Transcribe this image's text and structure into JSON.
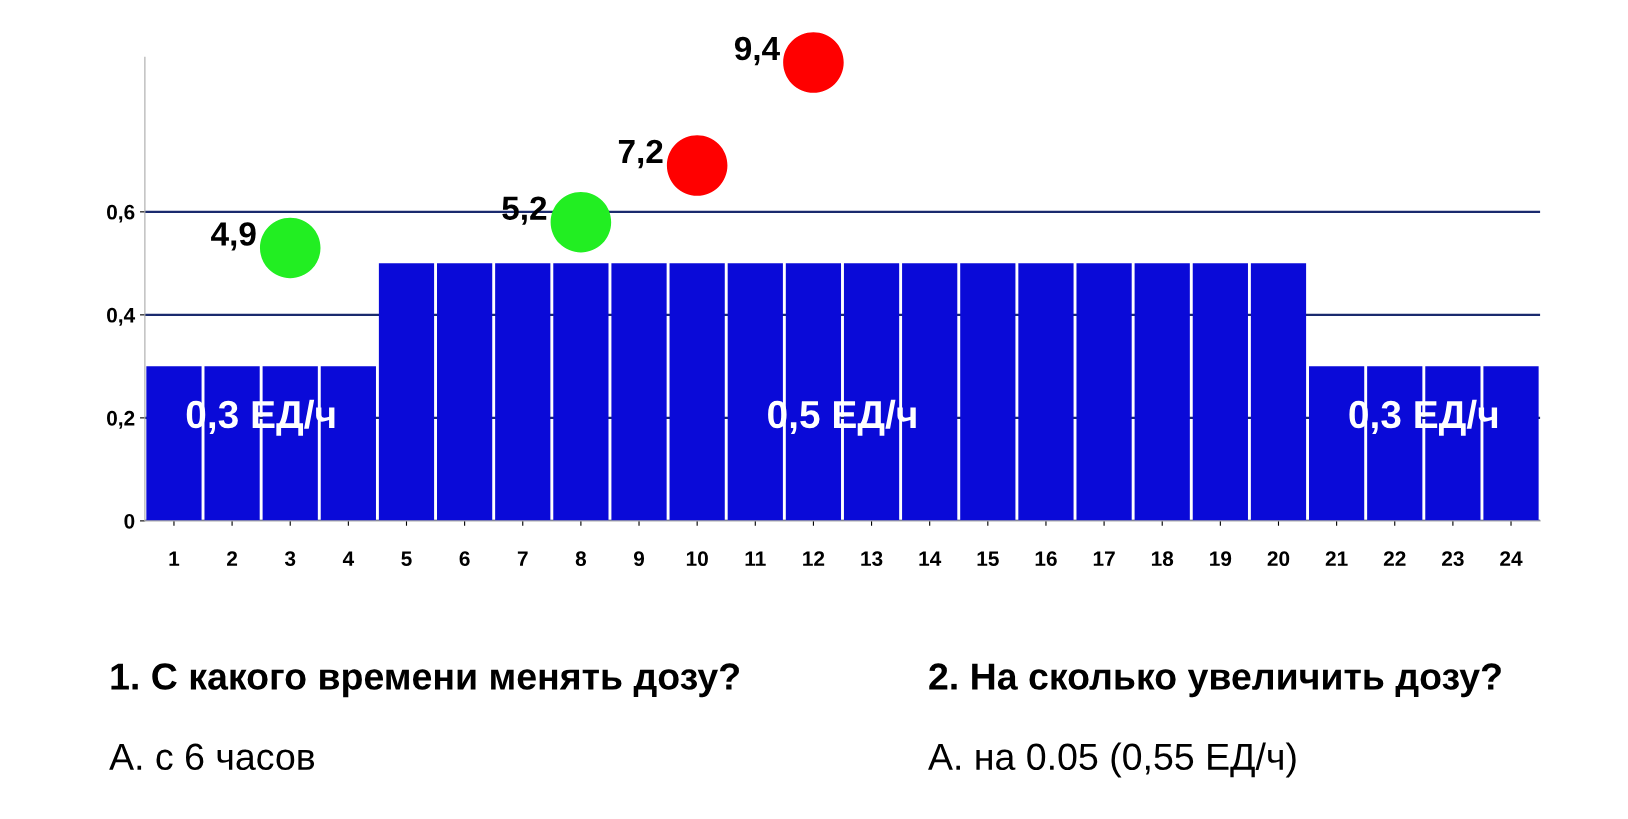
{
  "chart_data": {
    "type": "bar",
    "categories": [
      "1",
      "2",
      "3",
      "4",
      "5",
      "6",
      "7",
      "8",
      "9",
      "10",
      "11",
      "12",
      "13",
      "14",
      "15",
      "16",
      "17",
      "18",
      "19",
      "20",
      "21",
      "22",
      "23",
      "24"
    ],
    "series": [
      {
        "color": "#0a0ad8",
        "values": [
          0.3,
          0.3,
          0.3,
          0.3,
          0.5,
          0.5,
          0.5,
          0.5,
          0.5,
          0.5,
          0.5,
          0.5,
          0.5,
          0.5,
          0.5,
          0.5,
          0.5,
          0.5,
          0.5,
          0.5,
          0.3,
          0.3,
          0.3,
          0.3
        ]
      },
      {
        "type": "scatter",
        "x": [
          "3",
          "8",
          "10",
          "12"
        ],
        "values": [
          0.53,
          0.58,
          0.69,
          0.89
        ],
        "colors": [
          "#22ee22",
          "#22ee22",
          "#ff0000",
          "#ff0000"
        ]
      }
    ],
    "ylim": [
      0,
      0.9
    ],
    "yticks": [
      {
        "value": 0,
        "label": "0"
      },
      {
        "value": 0.2,
        "label": "0,2"
      },
      {
        "value": 0.4,
        "label": "0,4"
      },
      {
        "value": 0.6,
        "label": "0,6"
      }
    ],
    "grid": "y",
    "marker": "circle",
    "annotations": [
      {
        "text": "4,9",
        "x": "3",
        "y": 0.53
      },
      {
        "text": "5,2",
        "x": "8",
        "y": 0.58
      },
      {
        "text": "7,2",
        "x": "10",
        "y": 0.69
      },
      {
        "text": "9,4",
        "x": "12",
        "y": 0.89
      },
      "0,3 ЕД/ч",
      "0,5 ЕД/ч",
      "0,3 ЕД/ч",
      "1. С какого времени менять дозу?",
      "А. с 6 часов",
      "2. На сколько увеличить дозу?",
      "А. на 0.05 (0,55 ЕД/ч)"
    ]
  }
}
